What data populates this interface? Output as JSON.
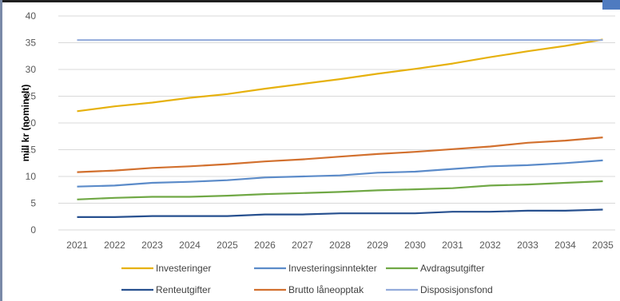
{
  "chart_data": {
    "type": "line",
    "title": "",
    "xlabel": "",
    "ylabel": "mill kr (nominelt)",
    "ylim": [
      0,
      40
    ],
    "yticks": [
      "0",
      "5",
      "10",
      "15",
      "20",
      "25",
      "30",
      "35",
      "40"
    ],
    "x": [
      "2021",
      "2022",
      "2023",
      "2024",
      "2025",
      "2026",
      "2027",
      "2028",
      "2029",
      "2030",
      "2031",
      "2032",
      "2033",
      "2034",
      "2035"
    ],
    "grid": "horizontal",
    "legend_position": "bottom",
    "series": [
      {
        "name": "Investeringer",
        "color": "#E6B10E",
        "values": [
          22.2,
          23.1,
          23.8,
          24.7,
          25.4,
          26.4,
          27.3,
          28.2,
          29.2,
          30.1,
          31.1,
          32.3,
          33.4,
          34.4,
          35.6
        ]
      },
      {
        "name": "Investeringsinntekter",
        "color": "#5B8BC9",
        "values": [
          8.1,
          8.3,
          8.8,
          9.0,
          9.3,
          9.8,
          10.0,
          10.2,
          10.7,
          10.9,
          11.4,
          11.9,
          12.1,
          12.5,
          13.0
        ]
      },
      {
        "name": "Avdragsutgifter",
        "color": "#70A845",
        "values": [
          5.7,
          6.0,
          6.2,
          6.2,
          6.4,
          6.7,
          6.9,
          7.1,
          7.4,
          7.6,
          7.8,
          8.3,
          8.5,
          8.8,
          9.1
        ]
      },
      {
        "name": "Renteutgifter",
        "color": "#27508F",
        "values": [
          2.4,
          2.4,
          2.6,
          2.6,
          2.6,
          2.9,
          2.9,
          3.1,
          3.1,
          3.1,
          3.4,
          3.4,
          3.6,
          3.6,
          3.8
        ]
      },
      {
        "name": "Brutto låneopptak",
        "color": "#D2702E",
        "values": [
          10.8,
          11.1,
          11.6,
          11.9,
          12.3,
          12.8,
          13.2,
          13.7,
          14.2,
          14.6,
          15.1,
          15.6,
          16.3,
          16.7,
          17.3
        ]
      },
      {
        "name": "Disposisjonsfond",
        "color": "#93ABDB",
        "values": [
          35.5,
          35.5,
          35.5,
          35.5,
          35.5,
          35.5,
          35.5,
          35.5,
          35.5,
          35.5,
          35.5,
          35.5,
          35.5,
          35.5,
          35.5
        ]
      }
    ]
  }
}
